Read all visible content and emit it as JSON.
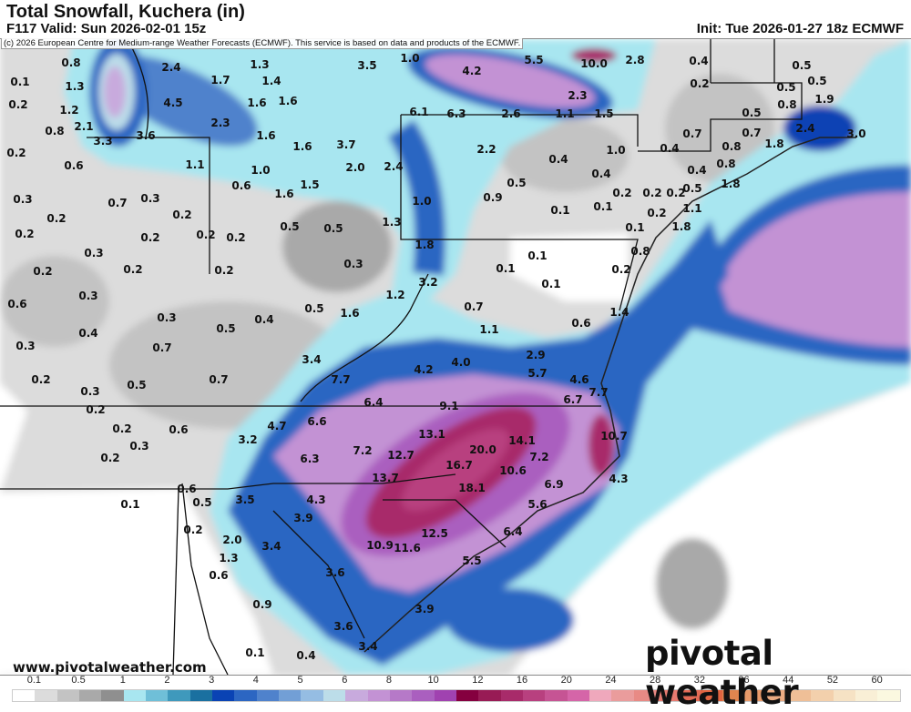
{
  "header": {
    "title": "Total Snowfall, Kuchera (in)",
    "valid": "F117 Valid: Sun 2026-02-01 15z",
    "init": "Init: Tue 2026-01-27 18z ECMWF",
    "copyright": "(c) 2026 European Centre for Medium-range Weather Forecasts (ECMWF). This service is based on data and products of the ECMWF."
  },
  "footer": {
    "website": "www.pivotalweather.com",
    "logo": "pivotal weather"
  },
  "map": {
    "units": "in",
    "labels": [
      "0.8",
      "0.1",
      "1.3",
      "0.2",
      "1.2",
      "0.8",
      "2.1",
      "3.3",
      "3.6",
      "2.4",
      "4.5",
      "1.7",
      "2.3",
      "1.3",
      "1.4",
      "1.6",
      "1.6",
      "1.6",
      "1.6",
      "1.1",
      "1.0",
      "1.5",
      "0.6",
      "1.6",
      "0.2",
      "0.6",
      "0.3",
      "0.7",
      "0.3",
      "0.2",
      "0.2",
      "0.2",
      "0.2",
      "0.2",
      "0.2",
      "0.5",
      "0.3",
      "0.2",
      "0.2",
      "0.2",
      "0.6",
      "0.3",
      "0.3",
      "0.4",
      "0.7",
      "0.5",
      "0.4",
      "0.3",
      "0.2",
      "0.3",
      "0.5",
      "0.7",
      "0.2",
      "0.2",
      "0.6",
      "0.3",
      "0.2",
      "3.5",
      "1.0",
      "4.2",
      "5.5",
      "10.0",
      "2.8",
      "6.1",
      "6.3",
      "2.6",
      "1.1",
      "1.5",
      "2.3",
      "3.7",
      "2.0",
      "2.4",
      "2.2",
      "1.0",
      "0.4",
      "0.4",
      "0.5",
      "0.9",
      "0.2",
      "0.1",
      "0.1",
      "1.0",
      "1.3",
      "1.8",
      "0.1",
      "0.5",
      "0.4",
      "0.2",
      "0.5",
      "0.5",
      "0.5",
      "0.8",
      "1.9",
      "0.5",
      "0.7",
      "0.7",
      "0.4",
      "2.4",
      "0.8",
      "1.8",
      "3.0",
      "0.8",
      "0.4",
      "1.8",
      "0.5",
      "0.2",
      "0.2",
      "1.1",
      "0.2",
      "0.1",
      "1.8",
      "0.8",
      "0.2",
      "0.3",
      "3.2",
      "1.2",
      "0.1",
      "0.1",
      "0.7",
      "1.6",
      "0.5",
      "1.1",
      "0.6",
      "1.4",
      "3.4",
      "4.2",
      "4.0",
      "2.9",
      "5.7",
      "4.6",
      "7.7",
      "7.7",
      "6.4",
      "9.1",
      "6.7",
      "4.7",
      "6.6",
      "3.2",
      "6.3",
      "7.2",
      "12.7",
      "13.1",
      "20.0",
      "14.1",
      "16.7",
      "10.6",
      "7.2",
      "10.7",
      "13.7",
      "18.1",
      "6.9",
      "4.3",
      "0.6",
      "0.1",
      "0.5",
      "3.5",
      "4.3",
      "3.9",
      "0.2",
      "2.0",
      "3.4",
      "1.3",
      "0.6",
      "3.6",
      "0.9",
      "3.6",
      "0.1",
      "0.4",
      "5.6",
      "6.4",
      "12.5",
      "10.9",
      "11.6",
      "5.5",
      "3.9",
      "3.4"
    ]
  },
  "colorbar": {
    "tick_labels": [
      "0.1",
      "0.5",
      "1",
      "2",
      "3",
      "4",
      "5",
      "6",
      "8",
      "10",
      "12",
      "16",
      "20",
      "24",
      "28",
      "32",
      "36",
      "44",
      "52",
      "60"
    ],
    "colors": [
      "#ffffff",
      "#dcdcdc",
      "#c3c3c3",
      "#a9a9a9",
      "#8f8f8f",
      "#a8e6f0",
      "#6fbfd8",
      "#3f99bc",
      "#1a70a0",
      "#0a43b4",
      "#2c66c2",
      "#4f82cc",
      "#729fd6",
      "#95bde3",
      "#bcdde9",
      "#c8aadd",
      "#c392d4",
      "#b679c8",
      "#aa5fbf",
      "#a042b0",
      "#85003f",
      "#981b55",
      "#a82b6a",
      "#b8407f",
      "#c65494",
      "#d565a8",
      "#efa8bc",
      "#ea9c9c",
      "#e88a85",
      "#e77a70",
      "#e26a55",
      "#e06440",
      "#e0854f",
      "#e89a6a",
      "#ebab82",
      "#efbf97",
      "#f3d0ac",
      "#f6e2c4",
      "#f9efd6",
      "#fbf8e0"
    ]
  }
}
